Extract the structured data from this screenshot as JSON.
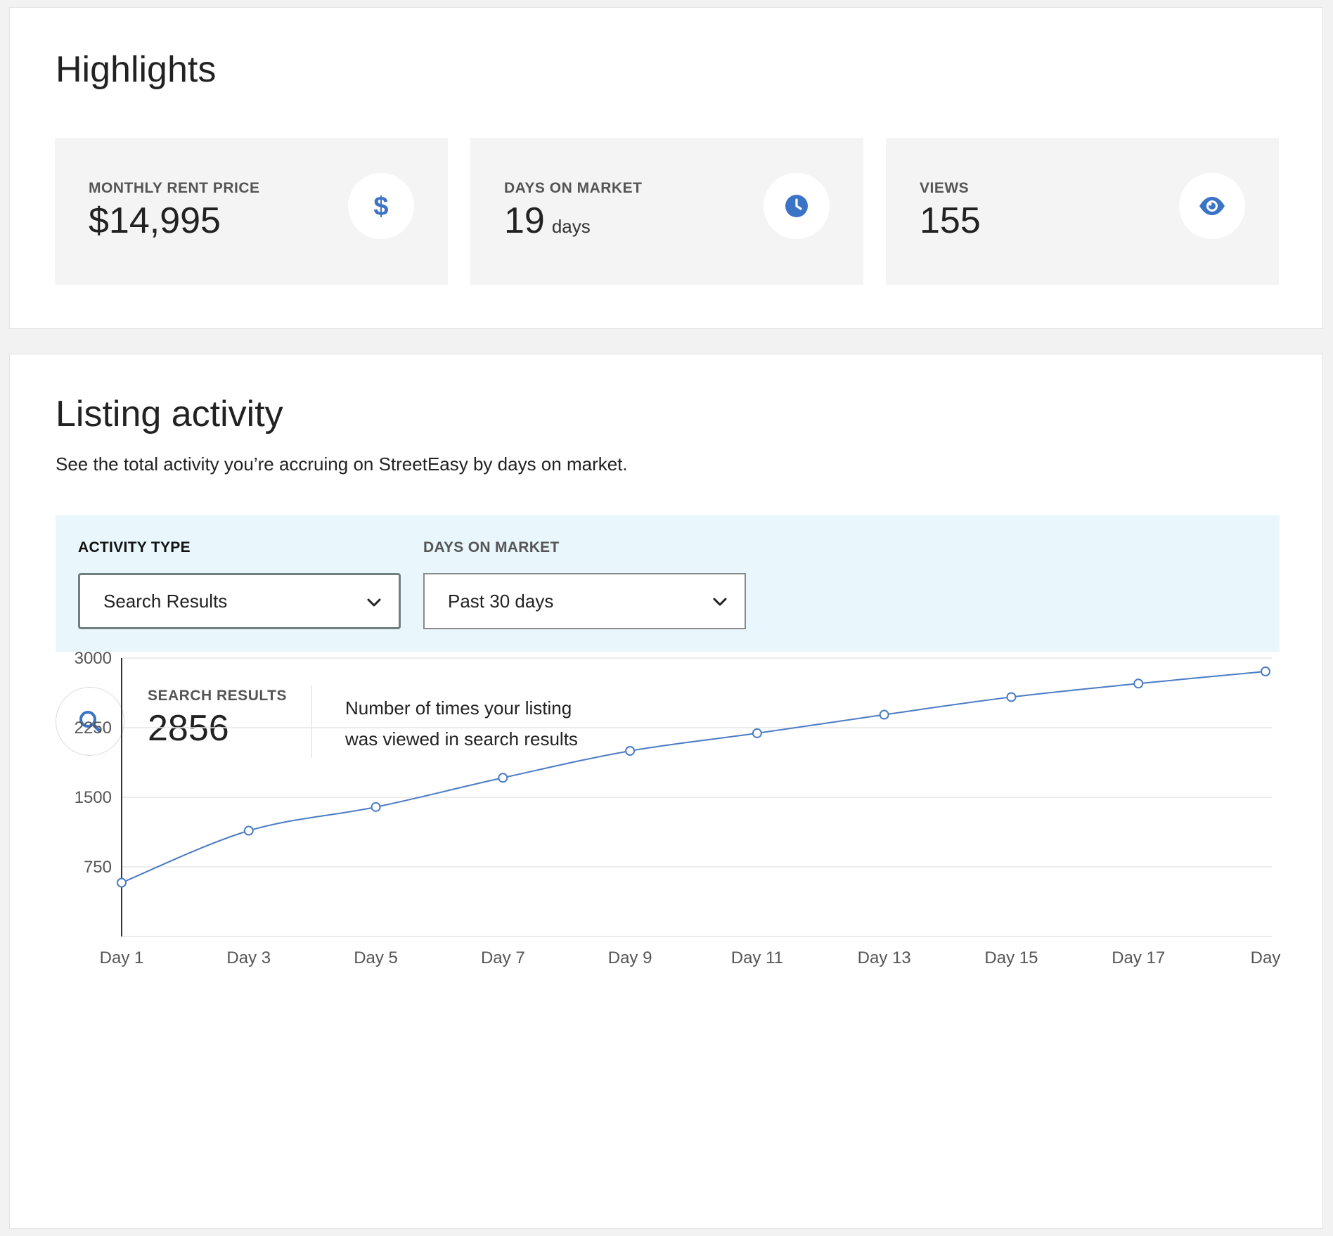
{
  "highlights": {
    "title": "Highlights",
    "stats": [
      {
        "label": "MONTHLY RENT PRICE",
        "value": "$14,995",
        "unit": "",
        "icon": "dollar-icon"
      },
      {
        "label": "DAYS ON MARKET",
        "value": "19",
        "unit": "days",
        "icon": "clock-icon"
      },
      {
        "label": "VIEWS",
        "value": "155",
        "unit": "",
        "icon": "eye-icon"
      }
    ]
  },
  "activity": {
    "title": "Listing activity",
    "subtitle": "See the total activity you’re accruing on StreetEasy by days on market.",
    "filters": {
      "activity_type_label": "ACTIVITY TYPE",
      "activity_type_value": "Search Results",
      "days_label": "DAYS ON MARKET",
      "days_value": "Past 30 days"
    },
    "summary": {
      "label": "SEARCH RESULTS",
      "value": "2856",
      "desc_line1": "Number of times your listing",
      "desc_line2": "was viewed in search results",
      "icon": "search-icon"
    }
  },
  "colors": {
    "accent": "#3b73c5",
    "line": "#4a7bc4",
    "panel": "#e9f6fb",
    "card": "#f4f4f4"
  },
  "chart_data": {
    "type": "line",
    "x": [
      "Day 1",
      "Day 3",
      "Day 5",
      "Day 7",
      "Day 9",
      "Day 11",
      "Day 13",
      "Day 15",
      "Day 17",
      "Day"
    ],
    "series": [
      {
        "values": [
          580,
          1140,
          1395,
          1710,
          2000,
          2190,
          2390,
          2580,
          2725,
          2856
        ]
      }
    ],
    "ylim": [
      0,
      3000
    ],
    "yticks": [
      3000,
      2250,
      1500,
      750
    ],
    "grid": true,
    "title": "",
    "xlabel": "",
    "ylabel": ""
  }
}
